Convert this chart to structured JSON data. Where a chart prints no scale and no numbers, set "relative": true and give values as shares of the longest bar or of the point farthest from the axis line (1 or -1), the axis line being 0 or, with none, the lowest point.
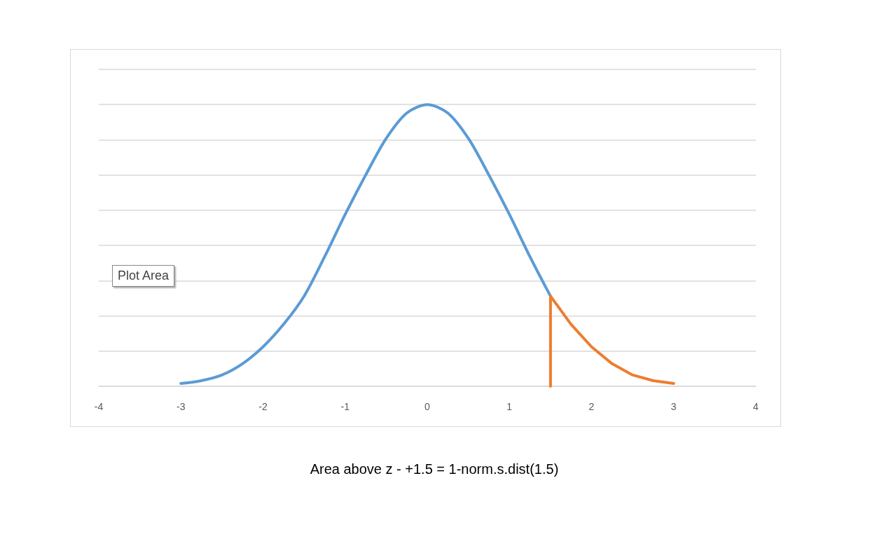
{
  "chart_data": {
    "type": "line",
    "relative": true,
    "xlim": [
      -4,
      4
    ],
    "xticks": [
      -4,
      -3,
      -2,
      -1,
      0,
      1,
      2,
      3,
      4
    ],
    "tick_labels": "x",
    "grid": "y",
    "marker": "none",
    "line_style": "solid",
    "series": [
      {
        "color": "#5b9bd5",
        "x": [
          -3,
          -2.75,
          -2.5,
          -2.25,
          -2,
          -1.75,
          -1.5,
          -1.25,
          -1,
          -0.75,
          -0.5,
          -0.25,
          0,
          0.25,
          0.5,
          0.75,
          1,
          1.25,
          1.5
        ],
        "values": [
          0.01,
          0.02,
          0.04,
          0.08,
          0.14,
          0.22,
          0.32,
          0.46,
          0.61,
          0.75,
          0.88,
          0.97,
          1,
          0.97,
          0.88,
          0.75,
          0.61,
          0.46,
          0.32
        ]
      },
      {
        "color": "#ed7d31",
        "x": [
          1.5,
          1.5,
          1.75,
          2,
          2.25,
          2.5,
          2.75,
          3
        ],
        "values": [
          0,
          0.32,
          0.22,
          0.14,
          0.08,
          0.04,
          0.02,
          0.01
        ]
      }
    ],
    "annotations": [
      "Plot Area",
      "Area above z - +1.5  = 1-norm.s.dist(1.5)"
    ]
  }
}
